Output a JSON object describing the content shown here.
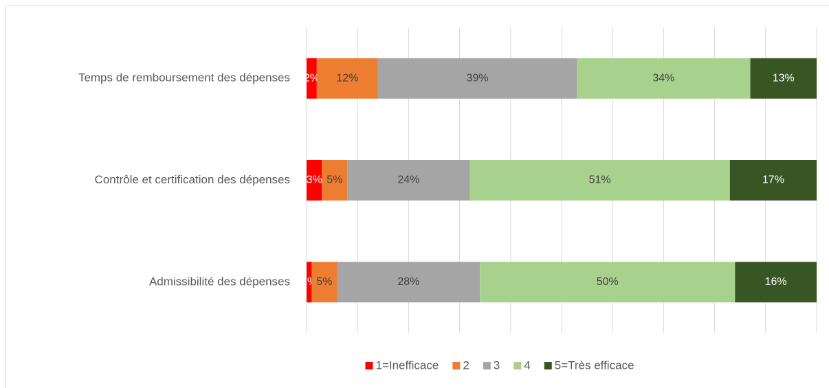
{
  "chart_data": {
    "type": "stacked-bar-horizontal",
    "categories": [
      "Temps de remboursement des dépenses",
      "Contrôle et certification des dépenses",
      "Admissibilité des dépenses"
    ],
    "series": [
      {
        "name": "1=Inefficace",
        "color": "#ff0000",
        "values": [
          2,
          3,
          1
        ],
        "value_labels": [
          "2%",
          "3%",
          "1%"
        ]
      },
      {
        "name": "2",
        "color": "#ed7d31",
        "values": [
          12,
          5,
          5
        ],
        "value_labels": [
          "12%",
          "5%",
          "5%"
        ]
      },
      {
        "name": "3",
        "color": "#a5a5a5",
        "values": [
          39,
          24,
          28
        ],
        "value_labels": [
          "39%",
          "24%",
          "28%"
        ]
      },
      {
        "name": "4",
        "color": "#a9d18e",
        "values": [
          34,
          51,
          50
        ],
        "value_labels": [
          "34%",
          "51%",
          "50%"
        ]
      },
      {
        "name": "5=Très efficace",
        "color": "#375623",
        "values": [
          13,
          17,
          16
        ],
        "value_labels": [
          "13%",
          "17%",
          "16%"
        ]
      }
    ],
    "xlim": [
      0,
      100
    ],
    "xticks": [
      0,
      10,
      20,
      30,
      40,
      50,
      60,
      70,
      80,
      90,
      100
    ],
    "grid": true,
    "legend": "bottom"
  }
}
